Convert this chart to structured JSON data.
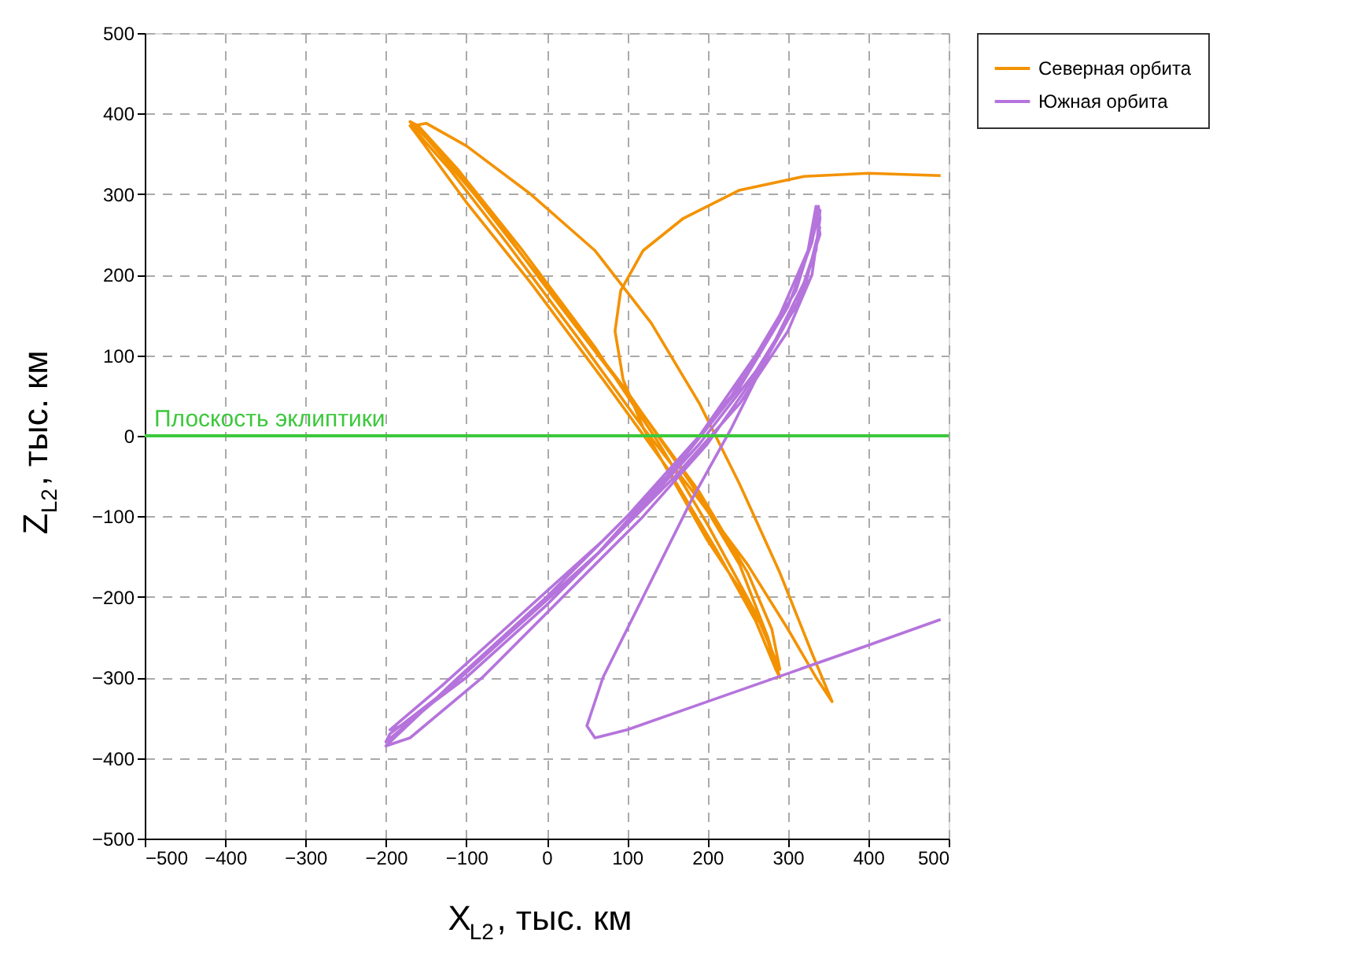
{
  "chart_data": {
    "type": "line",
    "xlabel": "X$_{L2}$, тыс. км",
    "ylabel": "Z$_{L2}$, тыс. км",
    "xlim": [
      -500,
      500
    ],
    "ylim": [
      -500,
      500
    ],
    "xticks": [
      -500,
      -400,
      -300,
      -200,
      -100,
      0,
      100,
      200,
      300,
      400,
      500
    ],
    "yticks": [
      -500,
      -400,
      -300,
      -200,
      -100,
      0,
      100,
      200,
      300,
      400,
      500
    ],
    "grid": true,
    "legend": "top right",
    "marker": "none",
    "line_style": "solid",
    "ref_lines": [
      {
        "axis": "y",
        "value": 0,
        "label": "Плоскость эклиптики",
        "color": "#3cc83c"
      }
    ],
    "series": [
      {
        "name": "Северная орбита",
        "color": "#f39200",
        "x": [
          490,
          400,
          320,
          240,
          170,
          120,
          92,
          85,
          95,
          120,
          160,
          200,
          240,
          270,
          290,
          275,
          240,
          180,
          100,
          0,
          -90,
          -150,
          -170,
          -160,
          -110,
          -30,
          60,
          140,
          200,
          260,
          290,
          280,
          250,
          190,
          110,
          10,
          -80,
          -140,
          -165,
          -150,
          -100,
          -20,
          60,
          130,
          190,
          240,
          290,
          330,
          355,
          335,
          300,
          250,
          190,
          120,
          40,
          -50,
          -120,
          -160,
          -170,
          -155,
          -100,
          -20,
          70,
          150,
          210,
          260,
          285,
          290
        ],
        "values": [
          323,
          326,
          322,
          305,
          270,
          230,
          180,
          130,
          70,
          10,
          -60,
          -130,
          -190,
          -240,
          -300,
          -250,
          -160,
          -60,
          55,
          185,
          300,
          370,
          390,
          385,
          330,
          230,
          110,
          -10,
          -110,
          -220,
          -290,
          -240,
          -170,
          -70,
          40,
          170,
          290,
          360,
          385,
          388,
          360,
          300,
          230,
          140,
          40,
          -60,
          -170,
          -270,
          -330,
          -300,
          -240,
          -160,
          -80,
          10,
          120,
          240,
          330,
          375,
          385,
          365,
          290,
          190,
          70,
          -40,
          -140,
          -230,
          -290,
          -300
        ]
      },
      {
        "name": "Южная орбита",
        "color": "#b574dc",
        "x": [
          490,
          400,
          300,
          200,
          100,
          60,
          50,
          70,
          120,
          180,
          230,
          280,
          320,
          340,
          335,
          325,
          290,
          230,
          150,
          60,
          -40,
          -140,
          -200,
          -195,
          -130,
          -30,
          70,
          160,
          240,
          300,
          330,
          340,
          338,
          330,
          300,
          240,
          160,
          70,
          -30,
          -130,
          -195,
          -180,
          -100,
          0,
          100,
          190,
          260,
          310,
          335,
          340,
          332,
          310,
          260,
          190,
          100,
          0,
          -110,
          -200,
          -170,
          -80,
          20,
          120,
          200,
          270,
          320,
          340
        ],
        "values": [
          -228,
          -260,
          -295,
          -330,
          -365,
          -375,
          -360,
          -300,
          -200,
          -80,
          10,
          110,
          190,
          250,
          285,
          230,
          150,
          50,
          -50,
          -150,
          -240,
          -330,
          -380,
          -370,
          -320,
          -230,
          -140,
          -50,
          40,
          130,
          200,
          270,
          285,
          240,
          160,
          60,
          -40,
          -130,
          -220,
          -310,
          -365,
          -360,
          -300,
          -210,
          -110,
          -10,
          80,
          160,
          230,
          280,
          250,
          180,
          100,
          0,
          -100,
          -200,
          -300,
          -385,
          -375,
          -300,
          -200,
          -100,
          -10,
          90,
          180,
          260
        ]
      }
    ]
  }
}
